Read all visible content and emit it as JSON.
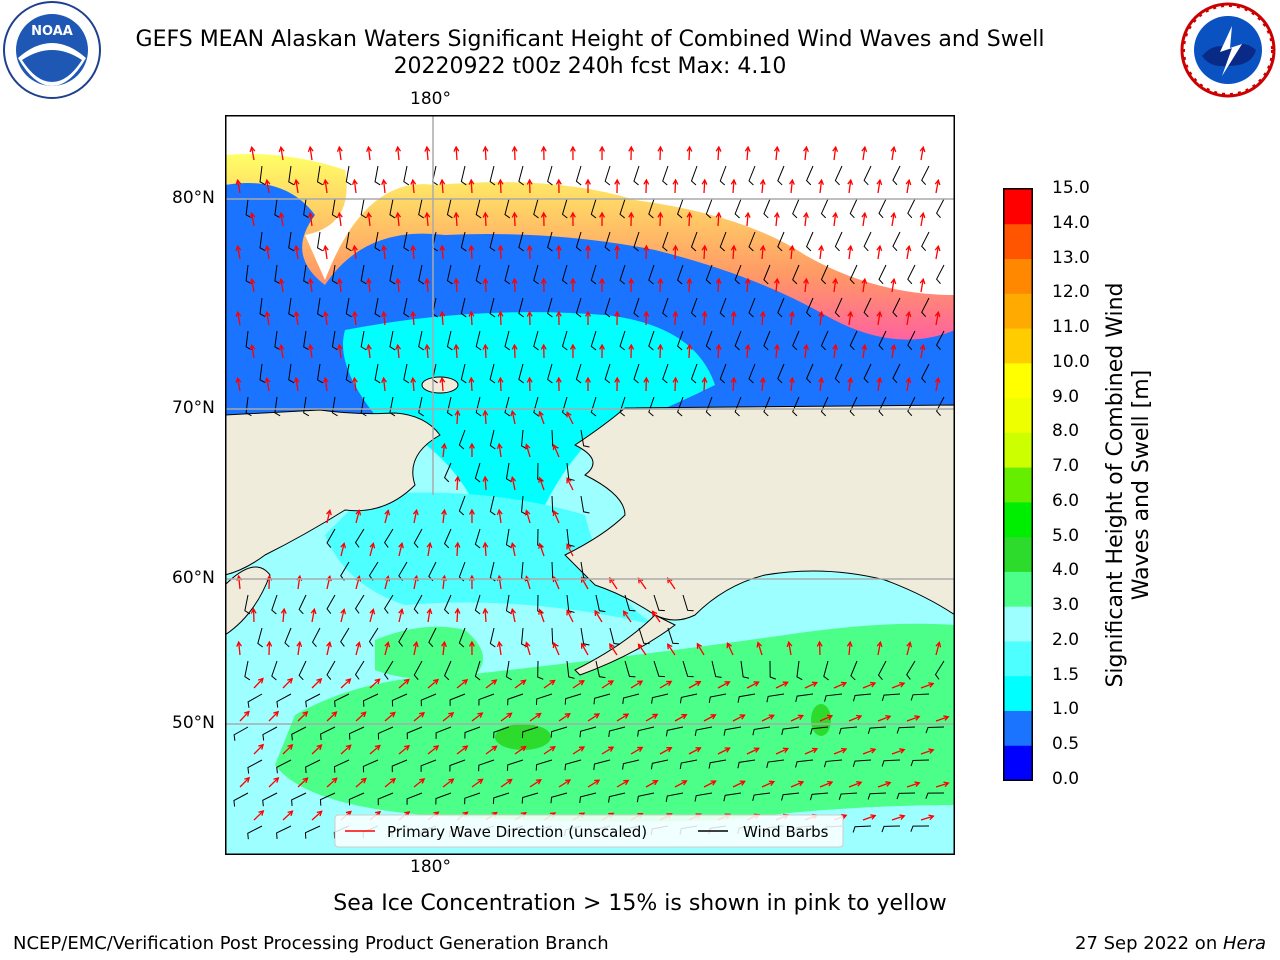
{
  "header": {
    "title_line1": "GEFS MEAN Alaskan Waters Significant Height of Combined Wind Waves and Swell",
    "title_line2": "20220922 t00z 240h fcst   Max: 4.10"
  },
  "logos": {
    "left": {
      "name": "NOAA",
      "text": "NOAA",
      "ring_text": "NATIONAL OCEANIC AND ATMOSPHERIC ADMINISTRATION · U.S. DEPARTMENT OF COMMERCE"
    },
    "right": {
      "name": "National Weather Service",
      "ring_text": "NATIONAL WEATHER SERVICE"
    }
  },
  "map": {
    "lon_labels": [
      "180°",
      "180°"
    ],
    "lat_labels": [
      "80°N",
      "70°N",
      "60°N",
      "50°N"
    ],
    "legend": {
      "primary_wave": "Primary Wave Direction (unscaled)",
      "wind_barbs": "Wind Barbs"
    },
    "colors": {
      "land": "#efecdc",
      "primary_wave": "#ff0000",
      "wind_barbs": "#000000"
    }
  },
  "colorbar": {
    "label": "Significant Height of Combined Wind Waves and Swell [m]",
    "ticks": [
      "0.0",
      "0.5",
      "1.0",
      "1.5",
      "2.0",
      "3.0",
      "4.0",
      "5.0",
      "6.0",
      "7.0",
      "8.0",
      "9.0",
      "10.0",
      "11.0",
      "12.0",
      "13.0",
      "14.0",
      "15.0"
    ],
    "colors": [
      "#0000ff",
      "#1a74ff",
      "#00ffff",
      "#4dffff",
      "#9dffff",
      "#4cff88",
      "#2ddb2d",
      "#00ee00",
      "#66ee00",
      "#ccff00",
      "#eeff00",
      "#ffff00",
      "#ffcc00",
      "#ffaa00",
      "#ff8800",
      "#ff5500",
      "#ff0000"
    ]
  },
  "note": "Sea Ice Concentration > 15% is shown in pink to yellow",
  "footer": {
    "left": "NCEP/EMC/Verification Post Processing Product Generation Branch",
    "right_prefix": "27 Sep 2022 on ",
    "right_host": "Hera"
  }
}
